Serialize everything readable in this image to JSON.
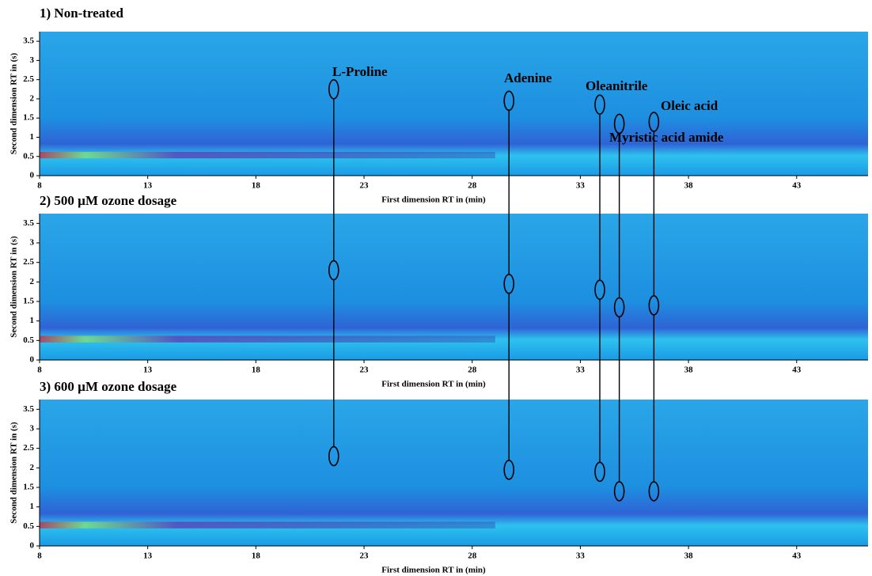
{
  "chart_data": [
    {
      "type": "contour",
      "title": "1) Non-treated",
      "x_label": "First dimension RT in (min)",
      "y_label": "Second dimension RT in (s)",
      "xlim": [
        8,
        46.3
      ],
      "ylim": [
        0,
        3.75
      ],
      "xticks": [
        8,
        13,
        18,
        23,
        28,
        33,
        38,
        43
      ],
      "yticks": [
        0,
        0.5,
        1,
        1.5,
        2,
        2.5,
        3,
        3.5
      ],
      "annotations": [
        {
          "name": "L-Proline",
          "x": 21.6,
          "y": 2.25
        },
        {
          "name": "Adenine",
          "x": 29.7,
          "y": 1.95
        },
        {
          "name": "Oleanitrile",
          "x": 33.9,
          "y": 1.85
        },
        {
          "name": "Myristic acid amide",
          "x": 34.8,
          "y": 1.35
        },
        {
          "name": "Oleic acid",
          "x": 36.4,
          "y": 1.4
        }
      ]
    },
    {
      "type": "contour",
      "title": "2) 500 µM ozone dosage",
      "x_label": "First dimension RT in (min)",
      "y_label": "Second dimension RT in (s)",
      "xlim": [
        8,
        46.3
      ],
      "ylim": [
        0,
        3.75
      ],
      "xticks": [
        8,
        13,
        18,
        23,
        28,
        33,
        38,
        43
      ],
      "yticks": [
        0,
        0.5,
        1,
        1.5,
        2,
        2.5,
        3,
        3.5
      ],
      "annotations": [
        {
          "x": 21.6,
          "y": 2.3
        },
        {
          "x": 29.7,
          "y": 1.95
        },
        {
          "x": 33.9,
          "y": 1.8
        },
        {
          "x": 34.8,
          "y": 1.35
        },
        {
          "x": 36.4,
          "y": 1.4
        }
      ]
    },
    {
      "type": "contour",
      "title": "3) 600 µM ozone dosage",
      "x_label": "First dimension RT in (min)",
      "y_label": "Second dimension RT in (s)",
      "xlim": [
        8,
        46.3
      ],
      "ylim": [
        0,
        3.75
      ],
      "xticks": [
        8,
        13,
        18,
        23,
        28,
        33,
        38,
        43
      ],
      "yticks": [
        0,
        0.5,
        1,
        1.5,
        2,
        2.5,
        3,
        3.5
      ],
      "annotations": [
        {
          "x": 21.6,
          "y": 2.3
        },
        {
          "x": 29.7,
          "y": 1.95
        },
        {
          "x": 33.9,
          "y": 1.9
        },
        {
          "x": 34.8,
          "y": 1.4
        },
        {
          "x": 36.4,
          "y": 1.4
        }
      ]
    }
  ]
}
